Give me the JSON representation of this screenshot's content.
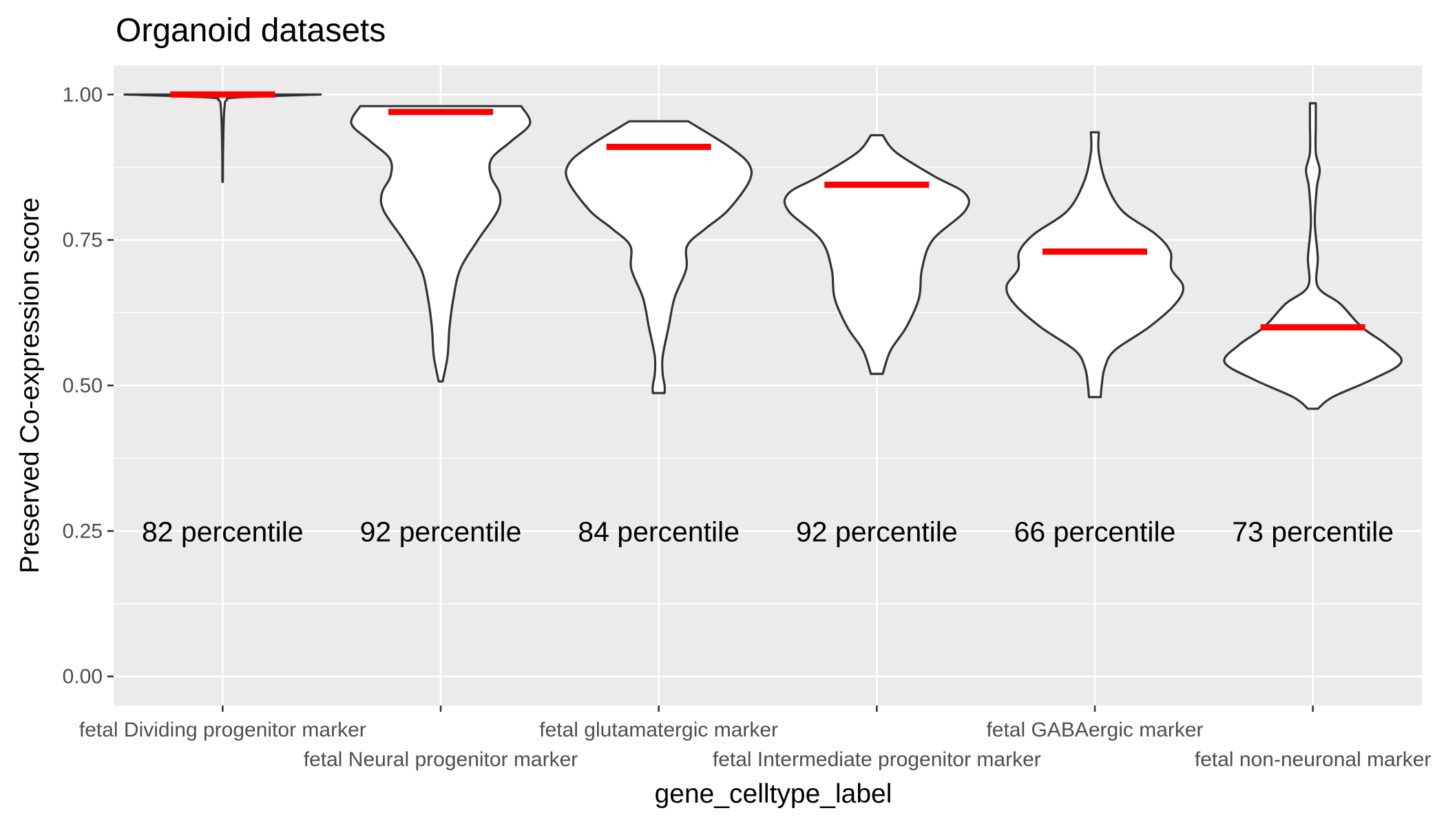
{
  "chart_data": {
    "type": "violin",
    "title": "Organoid datasets",
    "xlabel": "gene_celltype_label",
    "ylabel": "Preserved Co-expression score",
    "ylim": [
      -0.05,
      1.05
    ],
    "yticks": [
      0.0,
      0.25,
      0.5,
      0.75,
      1.0
    ],
    "ytick_labels": [
      "0.00",
      "0.25",
      "0.50",
      "0.75",
      "1.00"
    ],
    "grid": true,
    "legend": "none",
    "categories": [
      "fetal Dividing progenitor marker",
      "fetal Neural progenitor marker",
      "fetal glutamatergic marker",
      "fetal Intermediate progenitor marker",
      "fetal GABAergic marker",
      "fetal non-neuronal marker"
    ],
    "series": [
      {
        "medians": [
          1.0,
          0.97,
          0.91,
          0.845,
          0.73,
          0.6
        ],
        "annotations": [
          "82 percentile",
          "92 percentile",
          "84 percentile",
          "92 percentile",
          "66 percentile",
          "73 percentile"
        ],
        "annotation_y": 0.25,
        "violins": [
          {
            "profile": [
              [
                0.85,
                0.002
              ],
              [
                0.9,
                0.004
              ],
              [
                0.95,
                0.01
              ],
              [
                0.98,
                0.02
              ],
              [
                0.99,
                0.04
              ],
              [
                0.995,
                0.15
              ],
              [
                1.0,
                1.0
              ]
            ]
          },
          {
            "profile": [
              [
                0.507,
                0.02
              ],
              [
                0.55,
                0.07
              ],
              [
                0.6,
                0.09
              ],
              [
                0.65,
                0.13
              ],
              [
                0.7,
                0.2
              ],
              [
                0.75,
                0.38
              ],
              [
                0.8,
                0.58
              ],
              [
                0.83,
                0.6
              ],
              [
                0.86,
                0.51
              ],
              [
                0.89,
                0.52
              ],
              [
                0.92,
                0.72
              ],
              [
                0.95,
                0.91
              ],
              [
                0.98,
                0.82
              ]
            ]
          },
          {
            "profile": [
              [
                0.487,
                0.06
              ],
              [
                0.5,
                0.06
              ],
              [
                0.52,
                0.04
              ],
              [
                0.55,
                0.04
              ],
              [
                0.6,
                0.1
              ],
              [
                0.65,
                0.16
              ],
              [
                0.7,
                0.28
              ],
              [
                0.74,
                0.29
              ],
              [
                0.77,
                0.48
              ],
              [
                0.8,
                0.7
              ],
              [
                0.85,
                0.92
              ],
              [
                0.88,
                0.92
              ],
              [
                0.91,
                0.72
              ],
              [
                0.954,
                0.3
              ]
            ]
          },
          {
            "profile": [
              [
                0.52,
                0.06
              ],
              [
                0.56,
                0.14
              ],
              [
                0.6,
                0.3
              ],
              [
                0.65,
                0.43
              ],
              [
                0.7,
                0.46
              ],
              [
                0.75,
                0.57
              ],
              [
                0.8,
                0.9
              ],
              [
                0.83,
                0.9
              ],
              [
                0.86,
                0.58
              ],
              [
                0.9,
                0.2
              ],
              [
                0.93,
                0.06
              ]
            ]
          },
          {
            "profile": [
              [
                0.48,
                0.06
              ],
              [
                0.5,
                0.07
              ],
              [
                0.53,
                0.1
              ],
              [
                0.56,
                0.2
              ],
              [
                0.6,
                0.55
              ],
              [
                0.64,
                0.82
              ],
              [
                0.67,
                0.9
              ],
              [
                0.7,
                0.78
              ],
              [
                0.73,
                0.77
              ],
              [
                0.76,
                0.62
              ],
              [
                0.8,
                0.28
              ],
              [
                0.85,
                0.11
              ],
              [
                0.9,
                0.04
              ],
              [
                0.935,
                0.04
              ]
            ]
          },
          {
            "profile": [
              [
                0.46,
                0.05
              ],
              [
                0.48,
                0.2
              ],
              [
                0.51,
                0.6
              ],
              [
                0.54,
                0.9
              ],
              [
                0.57,
                0.75
              ],
              [
                0.6,
                0.5
              ],
              [
                0.64,
                0.28
              ],
              [
                0.67,
                0.05
              ],
              [
                0.72,
                0.05
              ],
              [
                0.78,
                0.02
              ],
              [
                0.84,
                0.04
              ],
              [
                0.87,
                0.07
              ],
              [
                0.9,
                0.03
              ],
              [
                0.95,
                0.03
              ],
              [
                0.985,
                0.03
              ]
            ]
          }
        ]
      }
    ]
  }
}
